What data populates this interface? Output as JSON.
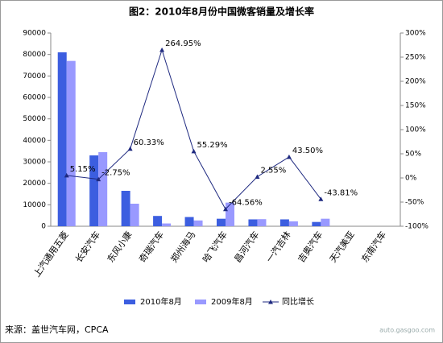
{
  "chart_data": {
    "type": "bar-line",
    "title": "图2：2010年8月份中国微客销量及增长率",
    "categories": [
      "上汽通用五菱",
      "长安汽车",
      "东风小康",
      "奇瑞汽车",
      "郑州海马",
      "哈飞汽车",
      "昌河汽车",
      "一汽吉林",
      "吉奥汽车",
      "天汽美亚",
      "东南汽车"
    ],
    "series": [
      {
        "name": "2010年8月",
        "color": "#3c5ee0",
        "type": "bar",
        "values": [
          81000,
          33000,
          16500,
          4800,
          4300,
          3500,
          3200,
          3200,
          2000,
          null,
          null
        ]
      },
      {
        "name": "2009年8月",
        "color": "#9999ff",
        "type": "bar",
        "values": [
          77000,
          34500,
          10500,
          1300,
          2700,
          11000,
          3300,
          2300,
          3500,
          null,
          null
        ]
      },
      {
        "name": "同比增长",
        "color": "#1f2a80",
        "type": "line",
        "axis": "y2",
        "values": [
          5.15,
          -2.75,
          60.33,
          264.95,
          55.29,
          -64.56,
          2.55,
          43.5,
          -43.81,
          null,
          null
        ],
        "value_labels": [
          "5.15%",
          "-2.75%",
          "60.33%",
          "264.95%",
          "55.29%",
          "-64.56%",
          "2.55%",
          "43.50%",
          "-43.81%",
          null,
          null
        ]
      }
    ],
    "ylim": [
      0,
      90000
    ],
    "yticks": [
      0,
      10000,
      20000,
      30000,
      40000,
      50000,
      60000,
      70000,
      80000,
      90000
    ],
    "y2lim": [
      -100,
      300
    ],
    "y2ticks": [
      {
        "value": -100,
        "label": "-100%"
      },
      {
        "value": -50,
        "label": "-50%"
      },
      {
        "value": 0,
        "label": "0%"
      },
      {
        "value": 50,
        "label": "50%"
      },
      {
        "value": 100,
        "label": "100%"
      },
      {
        "value": 150,
        "label": "150%"
      },
      {
        "value": 200,
        "label": "200%"
      },
      {
        "value": 250,
        "label": "250%"
      },
      {
        "value": 300,
        "label": "300%"
      }
    ],
    "source": "来源：盖世汽车网，CPCA",
    "watermark": "auto.gasgoo.com"
  }
}
